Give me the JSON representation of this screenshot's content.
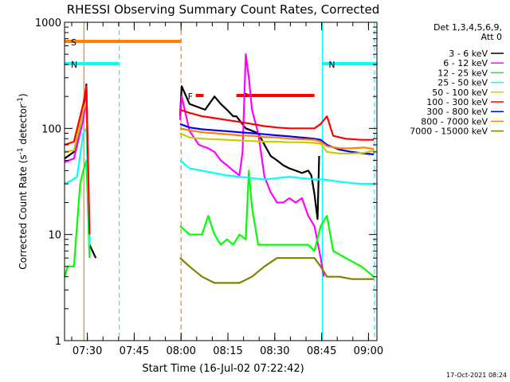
{
  "chart_data": {
    "type": "line",
    "title": "RHESSI Observing Summary Count Rates, Corrected",
    "xlabel": "Start Time (16-Jul-02 07:22:42)",
    "ylabel": "Corrected Count Rate (s",
    "ylabel_sup1": "-1",
    "ylabel_mid": " detector",
    "ylabel_sup2": "-1",
    "ylabel_end": ")",
    "yscale": "log",
    "ylim": [
      1,
      1000
    ],
    "xlim_minutes": [
      0,
      100
    ],
    "x_ticks": [
      {
        "label": "07:30",
        "minute": 7.3
      },
      {
        "label": "07:45",
        "minute": 22.3
      },
      {
        "label": "08:00",
        "minute": 37.3
      },
      {
        "label": "08:15",
        "minute": 52.3
      },
      {
        "label": "08:30",
        "minute": 67.3
      },
      {
        "label": "08:45",
        "minute": 82.3
      },
      {
        "label": "09:00",
        "minute": 97.3
      }
    ],
    "y_ticks": [
      {
        "label": "1",
        "value": 1
      },
      {
        "label": "10",
        "value": 10
      },
      {
        "label": "100",
        "value": 100
      },
      {
        "label": "1000",
        "value": 1000
      }
    ],
    "legend_header": [
      "Det 1,3,4,5,6,9,",
      "Att 0"
    ],
    "legend_position": "top-right",
    "series": [
      {
        "name": "3 - 6 keV",
        "color": "#000000",
        "points": [
          [
            0,
            52
          ],
          [
            3,
            60
          ],
          [
            6,
            150
          ],
          [
            7,
            260
          ],
          [
            8,
            8
          ],
          [
            10,
            6
          ],
          [
            37,
            130
          ],
          [
            37.5,
            250
          ],
          [
            40,
            170
          ],
          [
            45,
            150
          ],
          [
            48,
            200
          ],
          [
            50,
            170
          ],
          [
            52,
            150
          ],
          [
            54,
            130
          ],
          [
            55,
            130
          ],
          [
            58,
            100
          ],
          [
            60,
            95
          ],
          [
            62,
            90
          ],
          [
            64,
            70
          ],
          [
            66,
            55
          ],
          [
            68,
            50
          ],
          [
            70,
            45
          ],
          [
            72,
            42
          ],
          [
            74,
            40
          ],
          [
            76,
            38
          ],
          [
            78,
            40
          ],
          [
            79,
            36
          ],
          [
            80,
            24
          ],
          [
            81,
            14
          ],
          [
            81.5,
            55
          ]
        ]
      },
      {
        "name": "6 - 12 keV",
        "color": "#ff00ff",
        "points": [
          [
            0,
            48
          ],
          [
            3,
            52
          ],
          [
            6,
            120
          ],
          [
            7,
            200
          ],
          [
            8,
            8
          ],
          [
            37,
            120
          ],
          [
            37.5,
            200
          ],
          [
            40,
            95
          ],
          [
            43,
            70
          ],
          [
            46,
            65
          ],
          [
            48,
            60
          ],
          [
            50,
            50
          ],
          [
            52,
            45
          ],
          [
            54,
            40
          ],
          [
            56,
            36
          ],
          [
            57,
            60
          ],
          [
            58,
            500
          ],
          [
            59,
            300
          ],
          [
            60,
            150
          ],
          [
            62,
            90
          ],
          [
            64,
            35
          ],
          [
            66,
            25
          ],
          [
            68,
            20
          ],
          [
            70,
            20
          ],
          [
            72,
            22
          ],
          [
            74,
            20
          ],
          [
            76,
            22
          ],
          [
            78,
            15
          ],
          [
            80,
            12
          ],
          [
            82,
            6
          ],
          [
            83,
            4
          ]
        ]
      },
      {
        "name": "12 - 25 keV",
        "color": "#00ff00",
        "points": [
          [
            0,
            4
          ],
          [
            1,
            5
          ],
          [
            3,
            5
          ],
          [
            5,
            30
          ],
          [
            6,
            40
          ],
          [
            7,
            50
          ],
          [
            8,
            6
          ],
          [
            37,
            12
          ],
          [
            40,
            10
          ],
          [
            44,
            10
          ],
          [
            46,
            15
          ],
          [
            48,
            10
          ],
          [
            50,
            8
          ],
          [
            52,
            9
          ],
          [
            54,
            8
          ],
          [
            56,
            10
          ],
          [
            58,
            9
          ],
          [
            59,
            40
          ],
          [
            60,
            18
          ],
          [
            62,
            8
          ],
          [
            66,
            8
          ],
          [
            70,
            8
          ],
          [
            74,
            8
          ],
          [
            78,
            8
          ],
          [
            80,
            7
          ],
          [
            82,
            12
          ],
          [
            84,
            15
          ],
          [
            86,
            7
          ],
          [
            90,
            6
          ],
          [
            95,
            5
          ],
          [
            99,
            4
          ]
        ]
      },
      {
        "name": "25 - 50 keV",
        "color": "#00ffff",
        "points": [
          [
            0,
            30
          ],
          [
            2,
            32
          ],
          [
            4,
            35
          ],
          [
            6,
            90
          ],
          [
            7,
            100
          ],
          [
            8,
            8
          ],
          [
            37,
            50
          ],
          [
            40,
            42
          ],
          [
            44,
            40
          ],
          [
            48,
            38
          ],
          [
            52,
            36
          ],
          [
            56,
            35
          ],
          [
            60,
            34
          ],
          [
            64,
            33
          ],
          [
            68,
            34
          ],
          [
            72,
            35
          ],
          [
            76,
            34
          ],
          [
            80,
            33
          ],
          [
            83,
            33
          ],
          [
            86,
            32
          ],
          [
            90,
            31
          ],
          [
            95,
            30
          ],
          [
            99,
            30
          ]
        ]
      },
      {
        "name": "50 - 100 keV",
        "color": "#cccc00",
        "points": [
          [
            0,
            60
          ],
          [
            3,
            62
          ],
          [
            6,
            150
          ],
          [
            7,
            180
          ],
          [
            8,
            10
          ],
          [
            37,
            90
          ],
          [
            40,
            82
          ],
          [
            44,
            80
          ],
          [
            48,
            79
          ],
          [
            52,
            78
          ],
          [
            56,
            77
          ],
          [
            60,
            76
          ],
          [
            64,
            75
          ],
          [
            68,
            75
          ],
          [
            72,
            74
          ],
          [
            76,
            74
          ],
          [
            80,
            73
          ],
          [
            82,
            72
          ],
          [
            84,
            60
          ],
          [
            88,
            58
          ],
          [
            92,
            58
          ],
          [
            96,
            59
          ],
          [
            99,
            62
          ]
        ]
      },
      {
        "name": "100 - 300 keV",
        "color": "#ff0000",
        "points": [
          [
            0,
            70
          ],
          [
            3,
            75
          ],
          [
            6,
            170
          ],
          [
            7,
            250
          ],
          [
            8,
            10
          ],
          [
            37,
            150
          ],
          [
            40,
            140
          ],
          [
            44,
            130
          ],
          [
            48,
            125
          ],
          [
            52,
            120
          ],
          [
            56,
            115
          ],
          [
            60,
            110
          ],
          [
            64,
            105
          ],
          [
            68,
            102
          ],
          [
            72,
            100
          ],
          [
            76,
            100
          ],
          [
            80,
            100
          ],
          [
            82,
            110
          ],
          [
            84,
            130
          ],
          [
            86,
            85
          ],
          [
            90,
            80
          ],
          [
            95,
            78
          ],
          [
            99,
            78
          ]
        ]
      },
      {
        "name": "300 - 800 keV",
        "color": "#0000ff",
        "points": [
          [
            37,
            110
          ],
          [
            40,
            102
          ],
          [
            44,
            98
          ],
          [
            48,
            96
          ],
          [
            52,
            94
          ],
          [
            56,
            92
          ],
          [
            60,
            90
          ],
          [
            64,
            88
          ],
          [
            68,
            86
          ],
          [
            72,
            84
          ],
          [
            76,
            82
          ],
          [
            80,
            80
          ],
          [
            82,
            78
          ],
          [
            84,
            70
          ],
          [
            88,
            63
          ],
          [
            92,
            60
          ],
          [
            96,
            58
          ],
          [
            99,
            57
          ]
        ]
      },
      {
        "name": "800 - 7000 keV",
        "color": "#ff8000",
        "points": [
          [
            37,
            100
          ],
          [
            40,
            96
          ],
          [
            44,
            92
          ],
          [
            48,
            90
          ],
          [
            52,
            88
          ],
          [
            56,
            86
          ],
          [
            60,
            85
          ],
          [
            64,
            83
          ],
          [
            68,
            82
          ],
          [
            72,
            80
          ],
          [
            76,
            79
          ],
          [
            80,
            78
          ],
          [
            82,
            75
          ],
          [
            84,
            68
          ],
          [
            88,
            65
          ],
          [
            92,
            65
          ],
          [
            96,
            66
          ],
          [
            99,
            64
          ]
        ]
      },
      {
        "name": "7000 - 15000 keV",
        "color": "#808000",
        "points": [
          [
            37,
            6
          ],
          [
            40,
            5
          ],
          [
            44,
            4
          ],
          [
            48,
            3.5
          ],
          [
            52,
            3.5
          ],
          [
            56,
            3.5
          ],
          [
            60,
            4
          ],
          [
            64,
            5
          ],
          [
            68,
            6
          ],
          [
            72,
            6
          ],
          [
            76,
            6
          ],
          [
            80,
            6
          ],
          [
            82,
            5
          ],
          [
            84,
            4
          ],
          [
            88,
            4
          ],
          [
            92,
            3.8
          ],
          [
            96,
            3.8
          ],
          [
            99,
            3.8
          ]
        ]
      }
    ],
    "state_bars": [
      {
        "label": "S",
        "color": "#ff8000",
        "start": 0,
        "end": 37.3,
        "level": 0.94
      },
      {
        "label": "N",
        "color": "#00ffff",
        "start": 0,
        "end": 17.5,
        "level": 0.87
      },
      {
        "label": "N",
        "color": "#00ffff",
        "start": 82.5,
        "end": 100,
        "level": 0.87
      },
      {
        "label": "F",
        "color": "#ff0000",
        "start": 42,
        "end": 44.5,
        "level": 0.77
      },
      {
        "label": "F",
        "color": "#ff0000",
        "start": 55,
        "end": 80,
        "level": 0.77
      }
    ],
    "vertical_lines": [
      {
        "minute": 6.2,
        "color": "#ff8000",
        "style": "solid"
      },
      {
        "minute": 17.5,
        "color": "#00ffff",
        "style": "dashed"
      },
      {
        "minute": 37.3,
        "color": "#ff8000",
        "style": "dashed"
      },
      {
        "minute": 82.5,
        "color": "#00ffff",
        "style": "solid"
      },
      {
        "minute": 99.2,
        "color": "#00ffff",
        "style": "dashed"
      }
    ]
  },
  "footer_timestamp": "17-Oct-2021 08:24"
}
